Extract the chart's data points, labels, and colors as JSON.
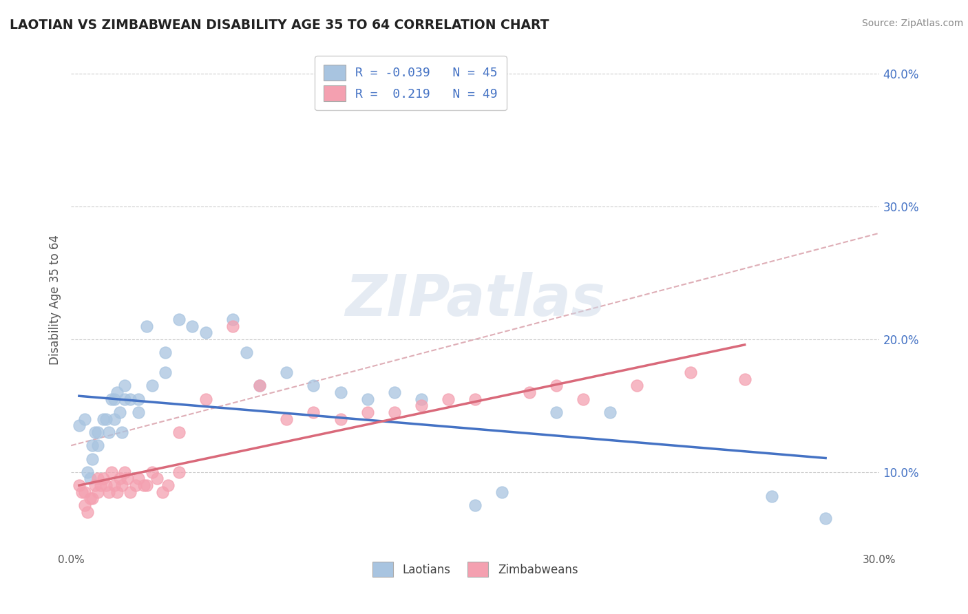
{
  "title": "LAOTIAN VS ZIMBABWEAN DISABILITY AGE 35 TO 64 CORRELATION CHART",
  "source": "Source: ZipAtlas.com",
  "ylabel": "Disability Age 35 to 64",
  "xlim": [
    0.0,
    0.3
  ],
  "ylim": [
    0.04,
    0.42
  ],
  "xtick_positions": [
    0.0,
    0.05,
    0.1,
    0.15,
    0.2,
    0.25,
    0.3
  ],
  "xticklabels": [
    "0.0%",
    "",
    "",
    "",
    "",
    "",
    "30.0%"
  ],
  "yticks_right": [
    0.1,
    0.2,
    0.3,
    0.4
  ],
  "ytick_labels_right": [
    "10.0%",
    "20.0%",
    "30.0%",
    "40.0%"
  ],
  "laotian_color": "#a8c4e0",
  "zimbabwean_color": "#f4a0b0",
  "laotian_line_color": "#4472c4",
  "zimbabwean_line_color": "#d9697a",
  "trend_line_color": "#d9a0aa",
  "R_laotian": -0.039,
  "N_laotian": 45,
  "R_zimbabwean": 0.219,
  "N_zimbabwean": 49,
  "laotian_x": [
    0.003,
    0.005,
    0.006,
    0.007,
    0.008,
    0.008,
    0.009,
    0.01,
    0.01,
    0.012,
    0.013,
    0.014,
    0.015,
    0.016,
    0.016,
    0.017,
    0.018,
    0.019,
    0.02,
    0.02,
    0.022,
    0.025,
    0.025,
    0.028,
    0.03,
    0.035,
    0.035,
    0.04,
    0.045,
    0.05,
    0.06,
    0.065,
    0.07,
    0.08,
    0.09,
    0.1,
    0.11,
    0.12,
    0.13,
    0.15,
    0.16,
    0.18,
    0.2,
    0.26,
    0.28
  ],
  "laotian_y": [
    0.135,
    0.14,
    0.1,
    0.095,
    0.11,
    0.12,
    0.13,
    0.13,
    0.12,
    0.14,
    0.14,
    0.13,
    0.155,
    0.14,
    0.155,
    0.16,
    0.145,
    0.13,
    0.155,
    0.165,
    0.155,
    0.145,
    0.155,
    0.21,
    0.165,
    0.175,
    0.19,
    0.215,
    0.21,
    0.205,
    0.215,
    0.19,
    0.165,
    0.175,
    0.165,
    0.16,
    0.155,
    0.16,
    0.155,
    0.075,
    0.085,
    0.145,
    0.145,
    0.082,
    0.065
  ],
  "zimbabwean_x": [
    0.003,
    0.004,
    0.005,
    0.005,
    0.006,
    0.007,
    0.008,
    0.009,
    0.01,
    0.01,
    0.011,
    0.012,
    0.013,
    0.014,
    0.015,
    0.016,
    0.017,
    0.018,
    0.019,
    0.02,
    0.021,
    0.022,
    0.024,
    0.025,
    0.027,
    0.028,
    0.03,
    0.032,
    0.034,
    0.036,
    0.04,
    0.04,
    0.05,
    0.06,
    0.07,
    0.08,
    0.09,
    0.1,
    0.11,
    0.12,
    0.13,
    0.14,
    0.15,
    0.17,
    0.18,
    0.19,
    0.21,
    0.23,
    0.25
  ],
  "zimbabwean_y": [
    0.09,
    0.085,
    0.085,
    0.075,
    0.07,
    0.08,
    0.08,
    0.09,
    0.085,
    0.095,
    0.09,
    0.095,
    0.09,
    0.085,
    0.1,
    0.09,
    0.085,
    0.095,
    0.09,
    0.1,
    0.095,
    0.085,
    0.09,
    0.095,
    0.09,
    0.09,
    0.1,
    0.095,
    0.085,
    0.09,
    0.1,
    0.13,
    0.155,
    0.21,
    0.165,
    0.14,
    0.145,
    0.14,
    0.145,
    0.145,
    0.15,
    0.155,
    0.155,
    0.16,
    0.165,
    0.155,
    0.165,
    0.175,
    0.17
  ],
  "watermark_text": "ZIPatlas",
  "background_color": "#ffffff",
  "grid_color": "#cccccc",
  "legend_R_color": "#4472c4",
  "legend_N_color": "#333333"
}
